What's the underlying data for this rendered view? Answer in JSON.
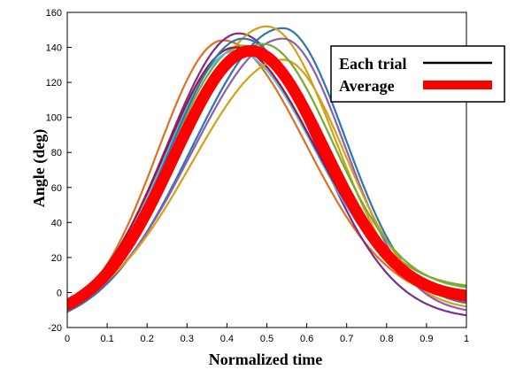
{
  "chart_data": {
    "type": "line",
    "title": "",
    "xlabel": "Normalized time",
    "ylabel": "Angle (deg)",
    "xlim": [
      0,
      1
    ],
    "ylim": [
      -20,
      160
    ],
    "xticks": [
      "0",
      "0.1",
      "0.2",
      "0.3",
      "0.4",
      "0.5",
      "0.6",
      "0.7",
      "0.8",
      "0.9",
      "1"
    ],
    "yticks": [
      "-20",
      "0",
      "20",
      "40",
      "60",
      "80",
      "100",
      "120",
      "140",
      "160"
    ],
    "grid": false,
    "legend": {
      "position": "top-right",
      "entries": [
        {
          "label": "Each trial",
          "color": "#000000"
        },
        {
          "label": "Average",
          "color": "#ff0000"
        }
      ]
    },
    "series": [
      {
        "color": "#e07020",
        "peak_x": 0.39,
        "peak_y": 144,
        "start_y": -8,
        "end_y": -4
      },
      {
        "color": "#7b2d8e",
        "peak_x": 0.43,
        "peak_y": 148,
        "start_y": -6,
        "end_y": -13
      },
      {
        "color": "#2e75b6",
        "peak_x": 0.54,
        "peak_y": 151,
        "start_y": -11,
        "end_y": -6
      },
      {
        "color": "#d4a017",
        "peak_x": 0.5,
        "peak_y": 152,
        "start_y": -7,
        "end_y": -8
      },
      {
        "color": "#77ac30",
        "peak_x": 0.44,
        "peak_y": 141,
        "start_y": -6,
        "end_y": 4
      },
      {
        "color": "#4dbeee",
        "peak_x": 0.42,
        "peak_y": 138,
        "start_y": -8,
        "end_y": 0
      },
      {
        "color": "#a2142f",
        "peak_x": 0.42,
        "peak_y": 140,
        "start_y": -5,
        "end_y": 1
      },
      {
        "color": "#8e5db0",
        "peak_x": 0.54,
        "peak_y": 145,
        "start_y": -9,
        "end_y": -10
      },
      {
        "color": "#d4a017",
        "peak_x": 0.54,
        "peak_y": 133,
        "start_y": -7,
        "end_y": -3
      },
      {
        "color": "#2e75b6",
        "peak_x": 0.44,
        "peak_y": 145,
        "start_y": -9,
        "end_y": -2
      },
      {
        "color": "#e07020",
        "peak_x": 0.47,
        "peak_y": 139,
        "start_y": -8,
        "end_y": -5
      },
      {
        "color": "#77ac30",
        "peak_x": 0.49,
        "peak_y": 142,
        "start_y": -7,
        "end_y": 3
      }
    ],
    "average": {
      "color": "#ff0000",
      "peak_x": 0.46,
      "peak_y": 138,
      "start_y": -7,
      "end_y": -2
    }
  }
}
